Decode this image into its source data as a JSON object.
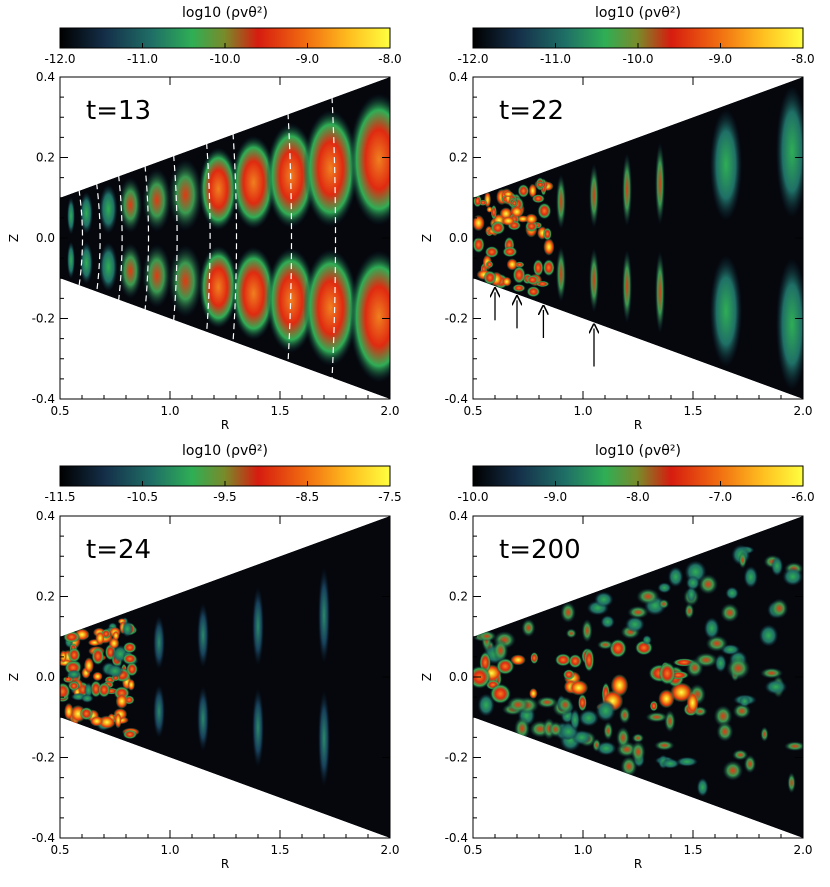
{
  "figure": {
    "panels": [
      {
        "time_label": "t=13",
        "colorbar": {
          "label": "log10 (ρvθ²)",
          "ticks": [
            "-12.0",
            "-11.0",
            "-10.0",
            "-9.0",
            "-8.0"
          ],
          "range": [
            -12.0,
            -8.0
          ]
        },
        "xlabel": "R",
        "ylabel": "Z",
        "xticks": [
          "0.5",
          "1.0",
          "1.5",
          "2.0"
        ],
        "yticks": [
          "0.4",
          "0.2",
          "0.0",
          "-0.2",
          "-0.4"
        ],
        "pattern": "early",
        "dashed_lines": true,
        "arrows": false
      },
      {
        "time_label": "t=22",
        "colorbar": {
          "label": "log10 (ρvθ²)",
          "ticks": [
            "-12.0",
            "-11.0",
            "-10.0",
            "-9.0",
            "-8.0"
          ],
          "range": [
            -12.0,
            -8.0
          ]
        },
        "xlabel": "R",
        "ylabel": "Z",
        "xticks": [
          "0.5",
          "1.0",
          "1.5",
          "2.0"
        ],
        "yticks": [
          "0.4",
          "0.2",
          "0.0",
          "-0.2",
          "-0.4"
        ],
        "pattern": "inner-turbulent",
        "dashed_lines": false,
        "arrows": true
      },
      {
        "time_label": "t=24",
        "colorbar": {
          "label": "log10 (ρvθ²)",
          "ticks": [
            "-11.5",
            "-10.5",
            "-9.5",
            "-8.5",
            "-7.5"
          ],
          "range": [
            -11.5,
            -7.5
          ]
        },
        "xlabel": "R",
        "ylabel": "Z",
        "xticks": [
          "0.5",
          "1.0",
          "1.5",
          "2.0"
        ],
        "yticks": [
          "0.4",
          "0.2",
          "0.0",
          "-0.2",
          "-0.4"
        ],
        "pattern": "inner-burst",
        "dashed_lines": false,
        "arrows": false
      },
      {
        "time_label": "t=200",
        "colorbar": {
          "label": "log10 (ρvθ²)",
          "ticks": [
            "-10.0",
            "-9.0",
            "-8.0",
            "-7.0",
            "-6.0"
          ],
          "range": [
            -10.0,
            -6.0
          ]
        },
        "xlabel": "R",
        "ylabel": "Z",
        "xticks": [
          "0.5",
          "1.0",
          "1.5",
          "2.0"
        ],
        "yticks": [
          "0.4",
          "0.2",
          "0.0",
          "-0.2",
          "-0.4"
        ],
        "pattern": "saturated",
        "dashed_lines": false,
        "arrows": false
      }
    ]
  },
  "chart_data": [
    {
      "type": "heatmap",
      "title": "t=13",
      "colorbar_label": "log10 (ρvθ²)",
      "colorbar_range": [
        -12.0,
        -8.0
      ],
      "xlabel": "R",
      "ylabel": "Z",
      "xlim": [
        0.5,
        2.0
      ],
      "ylim": [
        -0.4,
        0.4
      ],
      "domain": "wedge, |Z| <= 0.2 R",
      "features": {
        "cells_R": [
          0.55,
          0.62,
          0.72,
          0.82,
          0.94,
          1.07,
          1.22,
          1.38,
          1.55,
          1.73,
          1.95
        ],
        "dashed_fronts_R": [
          0.6,
          0.68,
          0.78,
          0.9,
          1.03,
          1.18,
          1.3,
          1.55,
          1.75
        ]
      }
    },
    {
      "type": "heatmap",
      "title": "t=22",
      "colorbar_label": "log10 (ρvθ²)",
      "colorbar_range": [
        -12.0,
        -8.0
      ],
      "xlabel": "R",
      "ylabel": "Z",
      "xlim": [
        0.5,
        2.0
      ],
      "ylim": [
        -0.4,
        0.4
      ],
      "domain": "wedge, |Z| <= 0.2 R",
      "features": {
        "arrows_R": [
          0.6,
          0.7,
          0.82,
          1.05
        ]
      }
    },
    {
      "type": "heatmap",
      "title": "t=24",
      "colorbar_label": "log10 (ρvθ²)",
      "colorbar_range": [
        -11.5,
        -7.5
      ],
      "xlabel": "R",
      "ylabel": "Z",
      "xlim": [
        0.5,
        2.0
      ],
      "ylim": [
        -0.4,
        0.4
      ],
      "domain": "wedge, |Z| <= 0.2 R"
    },
    {
      "type": "heatmap",
      "title": "t=200",
      "colorbar_label": "log10 (ρvθ²)",
      "colorbar_range": [
        -10.0,
        -6.0
      ],
      "xlabel": "R",
      "ylabel": "Z",
      "xlim": [
        0.5,
        2.0
      ],
      "ylim": [
        -0.4,
        0.4
      ],
      "domain": "wedge, |Z| <= 0.2 R"
    }
  ]
}
